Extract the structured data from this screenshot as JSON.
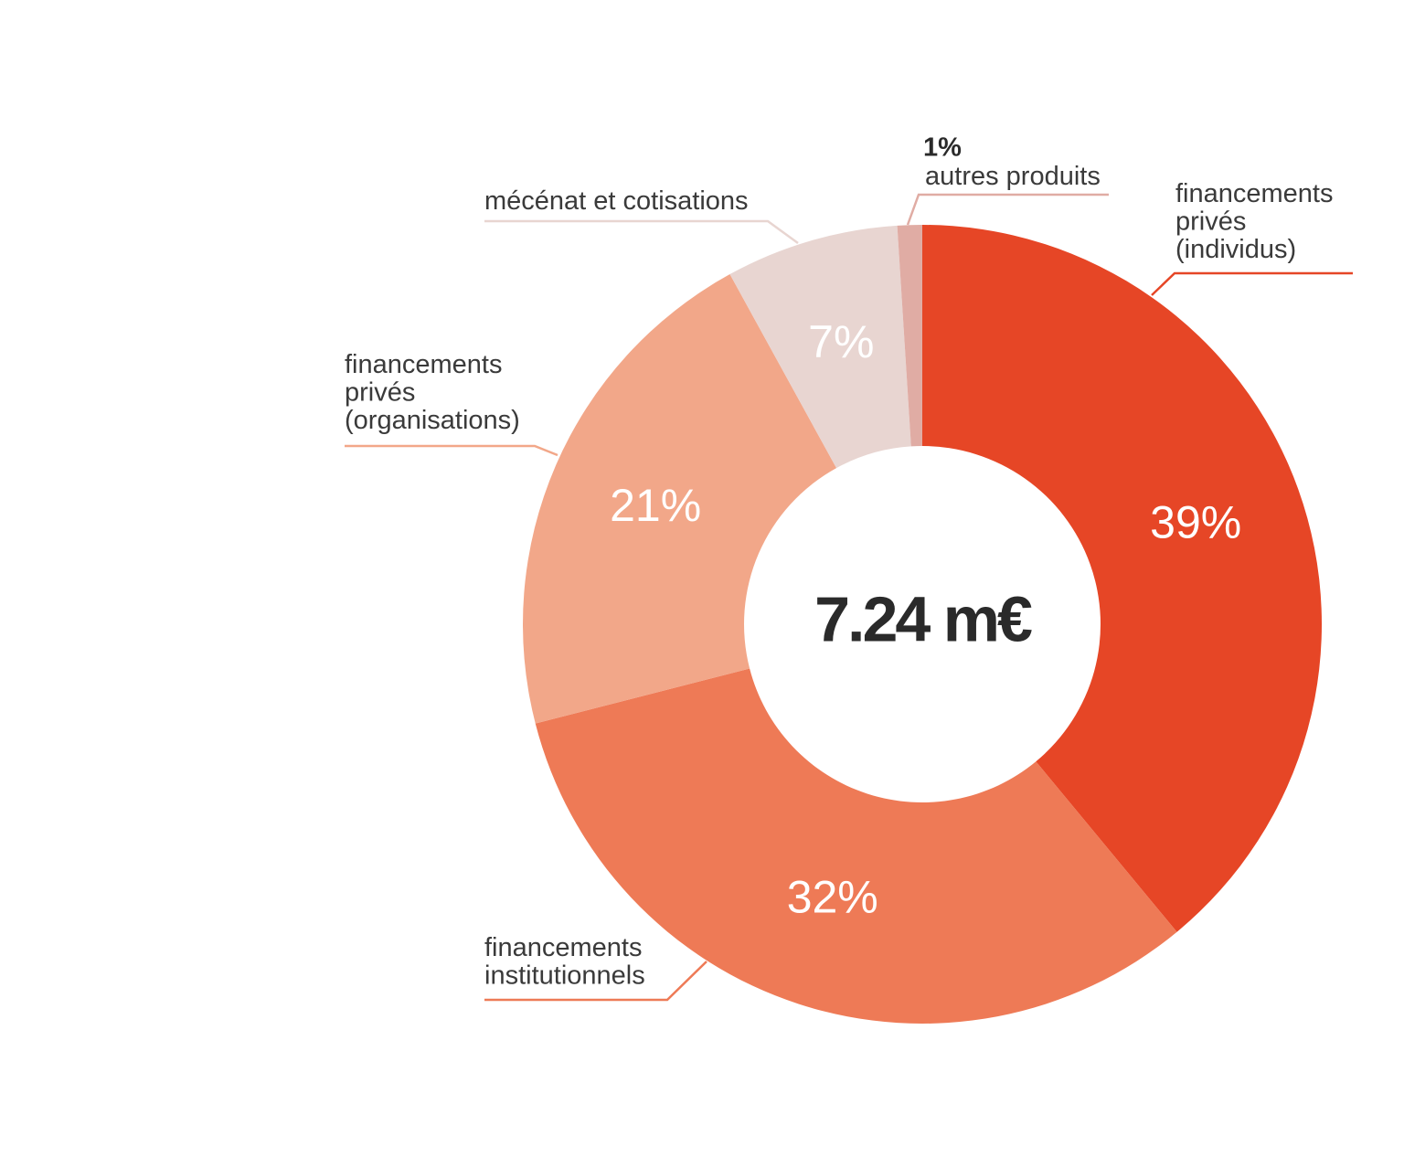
{
  "chart_data": {
    "type": "donut",
    "center_label": "7.24 m€",
    "categories": [
      "financements\nprivés\n(individus)",
      "financements\ninstitutionnels",
      "financements\nprivés\n(organisations)",
      "mécénat et cotisations",
      "autres produits"
    ],
    "values": [
      39,
      32,
      21,
      7,
      1
    ],
    "value_labels": [
      "39%",
      "32%",
      "21%",
      "7%",
      "1%"
    ],
    "colors": [
      "#e64626",
      "#ee7a56",
      "#f2a789",
      "#e8d5d1",
      "#e0aca4"
    ]
  }
}
